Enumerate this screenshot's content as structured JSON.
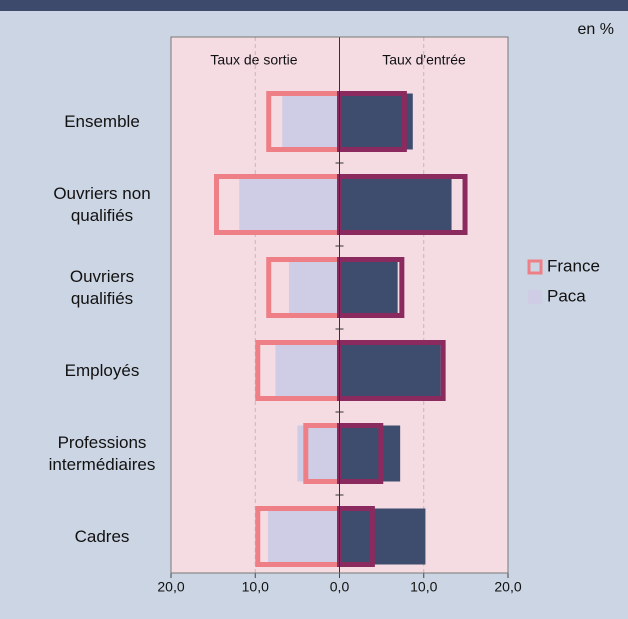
{
  "chart_data": {
    "type": "butterfly",
    "unit_label": "en %",
    "left_label": "Taux de sortie",
    "right_label": "Taux d'entrée",
    "categories": [
      "Ensemble",
      "Ouvriers non qualifiés",
      "Ouvriers qualifiés",
      "Employés",
      "Professions intermédiaires",
      "Cadres"
    ],
    "series": [
      {
        "name": "Paca",
        "style": "fill",
        "exit_color": "#cfcde6",
        "entry_color": "#3e4d6e",
        "exit": [
          -6.8,
          -11.9,
          -6.0,
          -7.6,
          -5.0,
          -8.5
        ],
        "entry": [
          8.7,
          13.3,
          6.9,
          12.0,
          7.2,
          10.2
        ]
      },
      {
        "name": "France",
        "style": "outline",
        "exit_color": "#ef7f86",
        "entry_color": "#8a2a5e",
        "exit": [
          -8.4,
          -14.6,
          -8.4,
          -9.7,
          -4.0,
          -9.7
        ],
        "entry": [
          7.7,
          14.9,
          7.4,
          12.3,
          4.9,
          3.9
        ]
      }
    ],
    "xlim": [
      -20,
      20
    ],
    "xticks": [
      {
        "value": -20,
        "label": "20,0"
      },
      {
        "value": -10,
        "label": "10,0"
      },
      {
        "value": 0,
        "label": "0,0"
      },
      {
        "value": 10,
        "label": "10,0"
      },
      {
        "value": 20,
        "label": "20,0"
      }
    ],
    "grid": true
  }
}
